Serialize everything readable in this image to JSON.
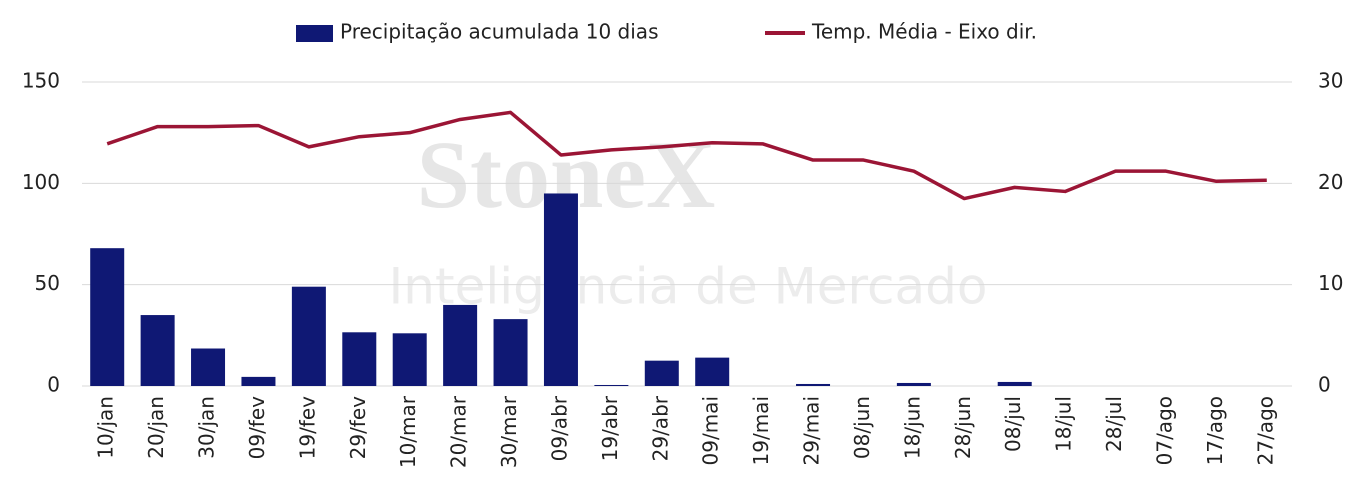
{
  "chart_data": {
    "type": "bar-line",
    "watermark": [
      "StoneX",
      "Inteligência de Mercado"
    ],
    "categories": [
      "10/jan",
      "20/jan",
      "30/jan",
      "09/fev",
      "19/fev",
      "29/fev",
      "10/mar",
      "20/mar",
      "30/mar",
      "09/abr",
      "19/abr",
      "29/abr",
      "09/mai",
      "19/mai",
      "29/mai",
      "08/jun",
      "18/jun",
      "28/jun",
      "08/jul",
      "18/jul",
      "28/jul",
      "07/ago",
      "17/ago",
      "27/ago"
    ],
    "series": [
      {
        "name": "Precipitação acumulada 10 dias",
        "type": "bar",
        "color": "#0f1874",
        "values": [
          68,
          35,
          18.5,
          4.5,
          49,
          26.5,
          26,
          40,
          33,
          95,
          0.5,
          12.5,
          14,
          0,
          1,
          0,
          1.5,
          0,
          2,
          0,
          0,
          0,
          0,
          0
        ]
      },
      {
        "name": "Temp. Média - Eixo dir.",
        "type": "line",
        "axis": "y2",
        "color": "#9b1535",
        "values": [
          23.9,
          25.6,
          25.6,
          25.7,
          23.6,
          24.6,
          25.0,
          26.3,
          27.0,
          22.8,
          23.3,
          23.6,
          24.0,
          23.9,
          22.3,
          22.3,
          21.2,
          18.5,
          19.6,
          19.2,
          21.2,
          21.2,
          20.2,
          20.3
        ]
      }
    ],
    "ylim": [
      0,
      150
    ],
    "yticks": [
      0,
      50,
      100,
      150
    ],
    "y2lim": [
      0,
      30
    ],
    "y2ticks": [
      0,
      10,
      20,
      30
    ],
    "grid": true,
    "legend": "top"
  }
}
